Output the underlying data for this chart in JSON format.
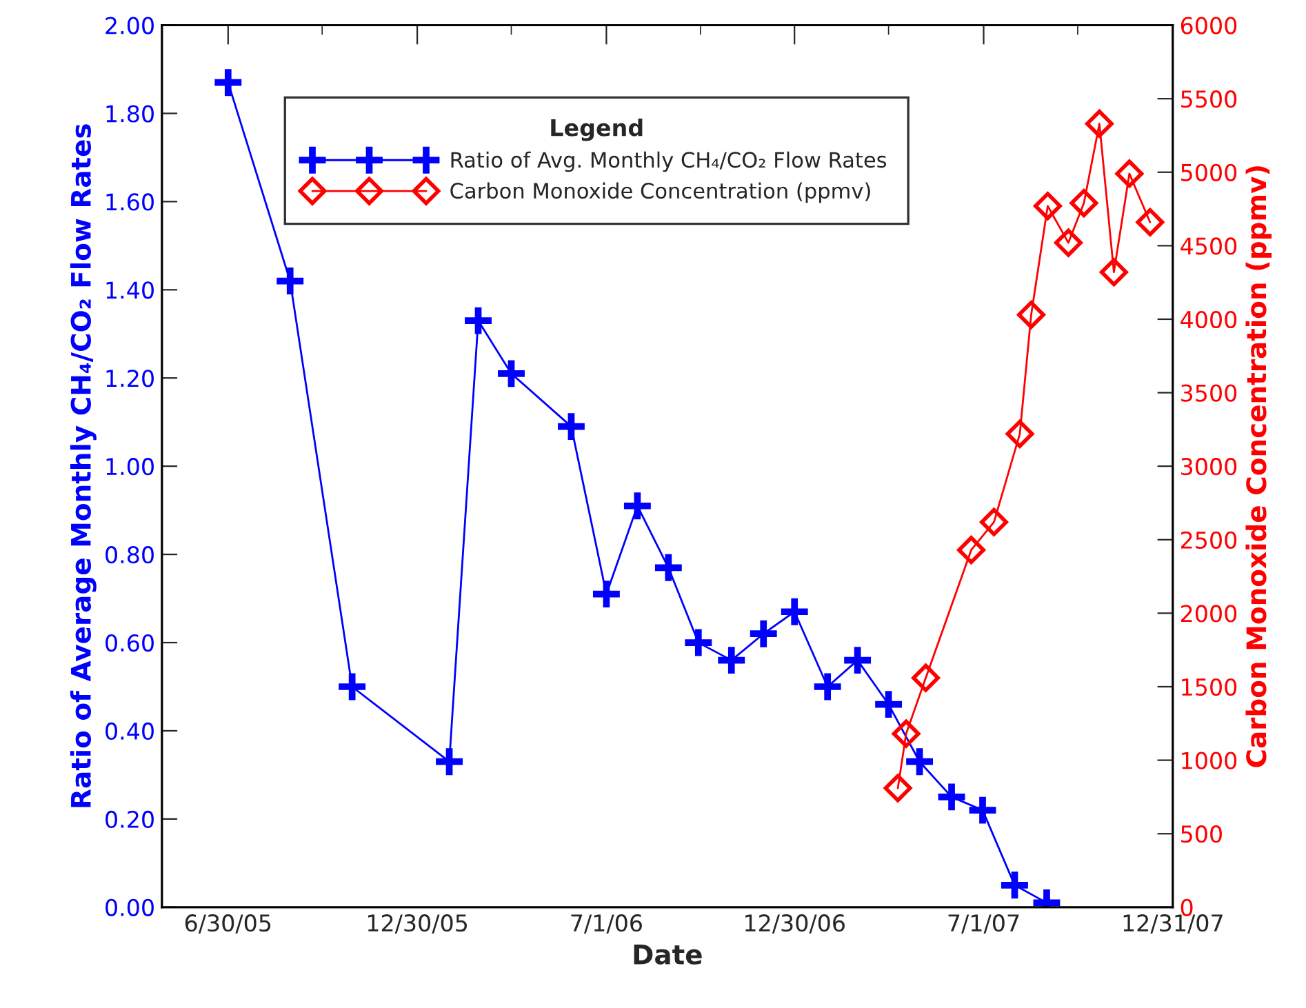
{
  "chart_data": {
    "type": "line",
    "xlabel": "Date",
    "ylabel": "Ratio of Average Monthly CH₄/CO₂ Flow Rates",
    "y2label": "Carbon Monoxide Concentration (ppmv)",
    "legend_title": "Legend",
    "series": [
      {
        "name": "Ratio of Avg. Monthly CH₄/CO₂ Flow Rates",
        "color": "#0000ff",
        "marker": "cross",
        "x": [
          "2005-06-30",
          "2005-08-29",
          "2005-10-28",
          "2006-01-30",
          "2006-02-27",
          "2006-03-31",
          "2006-05-28",
          "2006-07-01",
          "2006-07-31",
          "2006-08-30",
          "2006-09-28",
          "2006-10-30",
          "2006-11-30",
          "2006-12-30",
          "2007-01-31",
          "2007-03-01",
          "2007-03-31",
          "2007-04-30",
          "2007-05-31",
          "2007-06-30",
          "2007-07-31",
          "2007-08-31"
        ],
        "values": [
          1.87,
          1.42,
          0.5,
          0.33,
          1.33,
          1.21,
          1.09,
          0.71,
          0.91,
          0.77,
          0.6,
          0.56,
          0.62,
          0.67,
          0.5,
          0.56,
          0.46,
          0.33,
          0.25,
          0.22,
          0.05,
          0.01
        ]
      },
      {
        "name": "Carbon Monoxide Concentration (ppmv)",
        "color": "#ff0000",
        "marker": "diamond",
        "axis": "y2",
        "x": [
          "2007-04-09",
          "2007-04-17",
          "2007-05-06",
          "2007-06-19",
          "2007-07-11",
          "2007-08-05",
          "2007-08-16",
          "2007-09-01",
          "2007-09-21",
          "2007-10-06",
          "2007-10-21",
          "2007-11-04",
          "2007-11-19",
          "2007-12-09"
        ],
        "values": [
          810,
          1180,
          1560,
          2430,
          2620,
          3220,
          4030,
          4770,
          4520,
          4790,
          5330,
          4320,
          4990,
          4660
        ]
      }
    ],
    "xlim": [
      "2005-04-27",
      "2007-12-31"
    ],
    "xticks": [
      {
        "value": "2005-06-30",
        "label": "6/30/05"
      },
      {
        "value": "2005-09-29",
        "label": null
      },
      {
        "value": "2005-12-30",
        "label": "12/30/05"
      },
      {
        "value": "2006-03-31",
        "label": null
      },
      {
        "value": "2006-07-01",
        "label": "7/1/06"
      },
      {
        "value": "2006-09-30",
        "label": null
      },
      {
        "value": "2006-12-30",
        "label": "12/30/06"
      },
      {
        "value": "2007-03-31",
        "label": null
      },
      {
        "value": "2007-07-01",
        "label": "7/1/07"
      },
      {
        "value": "2007-09-30",
        "label": null
      },
      {
        "value": "2007-12-31",
        "label": "12/31/07"
      }
    ],
    "ylim": [
      0,
      2
    ],
    "yticks": [
      {
        "value": 0,
        "label": "0.00"
      },
      {
        "value": 0.2,
        "label": "0.20"
      },
      {
        "value": 0.4,
        "label": "0.40"
      },
      {
        "value": 0.6,
        "label": "0.60"
      },
      {
        "value": 0.8,
        "label": "0.80"
      },
      {
        "value": 1.0,
        "label": "1.00"
      },
      {
        "value": 1.2,
        "label": "1.20"
      },
      {
        "value": 1.4,
        "label": "1.40"
      },
      {
        "value": 1.6,
        "label": "1.60"
      },
      {
        "value": 1.8,
        "label": "1.80"
      },
      {
        "value": 2.0,
        "label": "2.00"
      }
    ],
    "y2lim": [
      0,
      6000
    ],
    "y2ticks": [
      0,
      500,
      1000,
      1500,
      2000,
      2500,
      3000,
      3500,
      4000,
      4500,
      5000,
      5500,
      6000
    ],
    "grid": false,
    "legend": "top",
    "line_style": "solid"
  }
}
